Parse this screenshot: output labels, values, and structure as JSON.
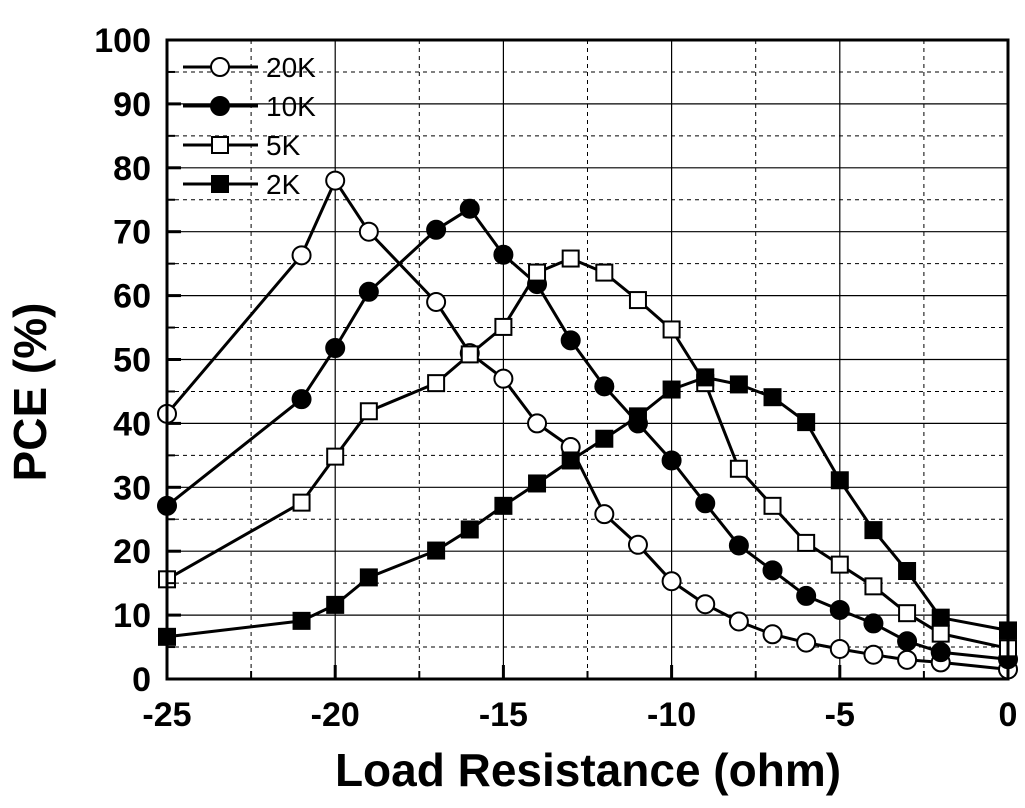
{
  "chart_data": {
    "type": "line",
    "title": "",
    "xlabel": "Load Resistance (ohm)",
    "ylabel": "PCE (%)",
    "xlim": [
      -25,
      0
    ],
    "ylim": [
      0,
      100
    ],
    "x_ticks": [
      "-25",
      "-20",
      "-15",
      "-10",
      "-5",
      "0"
    ],
    "y_ticks": [
      "0",
      "10",
      "20",
      "30",
      "40",
      "50",
      "60",
      "70",
      "80",
      "90",
      "100"
    ],
    "grid": true,
    "legend_position": "top-left",
    "series": [
      {
        "name": "20K",
        "marker": "circle-open",
        "points": [
          [
            -25,
            41.5
          ],
          [
            -21,
            66.3
          ],
          [
            -20,
            78
          ],
          [
            -19,
            70
          ],
          [
            -17,
            59
          ],
          [
            -16,
            51
          ],
          [
            -15,
            47
          ],
          [
            -14,
            40
          ],
          [
            -13,
            36.3
          ],
          [
            -12,
            25.8
          ],
          [
            -11,
            21
          ],
          [
            -10,
            15.3
          ],
          [
            -9,
            11.7
          ],
          [
            -8,
            9
          ],
          [
            -7,
            7
          ],
          [
            -6,
            5.7
          ],
          [
            -5,
            4.7
          ],
          [
            -4,
            3.8
          ],
          [
            -3,
            3
          ],
          [
            -2,
            2.6
          ],
          [
            0,
            1.5
          ]
        ]
      },
      {
        "name": "10K",
        "marker": "circle-filled",
        "points": [
          [
            -25,
            27.1
          ],
          [
            -21,
            43.8
          ],
          [
            -20,
            51.8
          ],
          [
            -19,
            60.6
          ],
          [
            -17,
            70.3
          ],
          [
            -16,
            73.6
          ],
          [
            -15,
            66.4
          ],
          [
            -14,
            61.8
          ],
          [
            -13,
            53
          ],
          [
            -12,
            45.8
          ],
          [
            -11,
            40
          ],
          [
            -10,
            34.2
          ],
          [
            -9,
            27.5
          ],
          [
            -8,
            20.9
          ],
          [
            -7,
            17
          ],
          [
            -6,
            13
          ],
          [
            -5,
            10.8
          ],
          [
            -4,
            8.7
          ],
          [
            -3,
            5.9
          ],
          [
            -2,
            4.2
          ],
          [
            0,
            3.1
          ]
        ]
      },
      {
        "name": "5K",
        "marker": "square-open",
        "points": [
          [
            -25,
            15.6
          ],
          [
            -21,
            27.6
          ],
          [
            -20,
            34.8
          ],
          [
            -19,
            41.9
          ],
          [
            -17,
            46.3
          ],
          [
            -16,
            50.8
          ],
          [
            -15,
            55.1
          ],
          [
            -14,
            63.6
          ],
          [
            -13,
            65.8
          ],
          [
            -12,
            63.6
          ],
          [
            -11,
            59.3
          ],
          [
            -10,
            54.7
          ],
          [
            -9,
            46.3
          ],
          [
            -8,
            32.9
          ],
          [
            -7,
            27.1
          ],
          [
            -6,
            21.3
          ],
          [
            -5,
            17.9
          ],
          [
            -4,
            14.5
          ],
          [
            -3,
            10.3
          ],
          [
            -2,
            7.1
          ],
          [
            0,
            4.8
          ]
        ]
      },
      {
        "name": "2K",
        "marker": "square-filled",
        "points": [
          [
            -25,
            6.6
          ],
          [
            -21,
            9.1
          ],
          [
            -20,
            11.6
          ],
          [
            -19,
            15.9
          ],
          [
            -17,
            20.1
          ],
          [
            -16,
            23.4
          ],
          [
            -15,
            27.1
          ],
          [
            -14,
            30.6
          ],
          [
            -13,
            34.2
          ],
          [
            -12,
            37.6
          ],
          [
            -11,
            41.1
          ],
          [
            -10,
            45.3
          ],
          [
            -9,
            47.2
          ],
          [
            -8,
            46.1
          ],
          [
            -7,
            44.1
          ],
          [
            -6,
            40.2
          ],
          [
            -5,
            31.1
          ],
          [
            -4,
            23.3
          ],
          [
            -3,
            16.9
          ],
          [
            -2,
            9.6
          ],
          [
            0,
            7.6
          ]
        ]
      }
    ]
  }
}
